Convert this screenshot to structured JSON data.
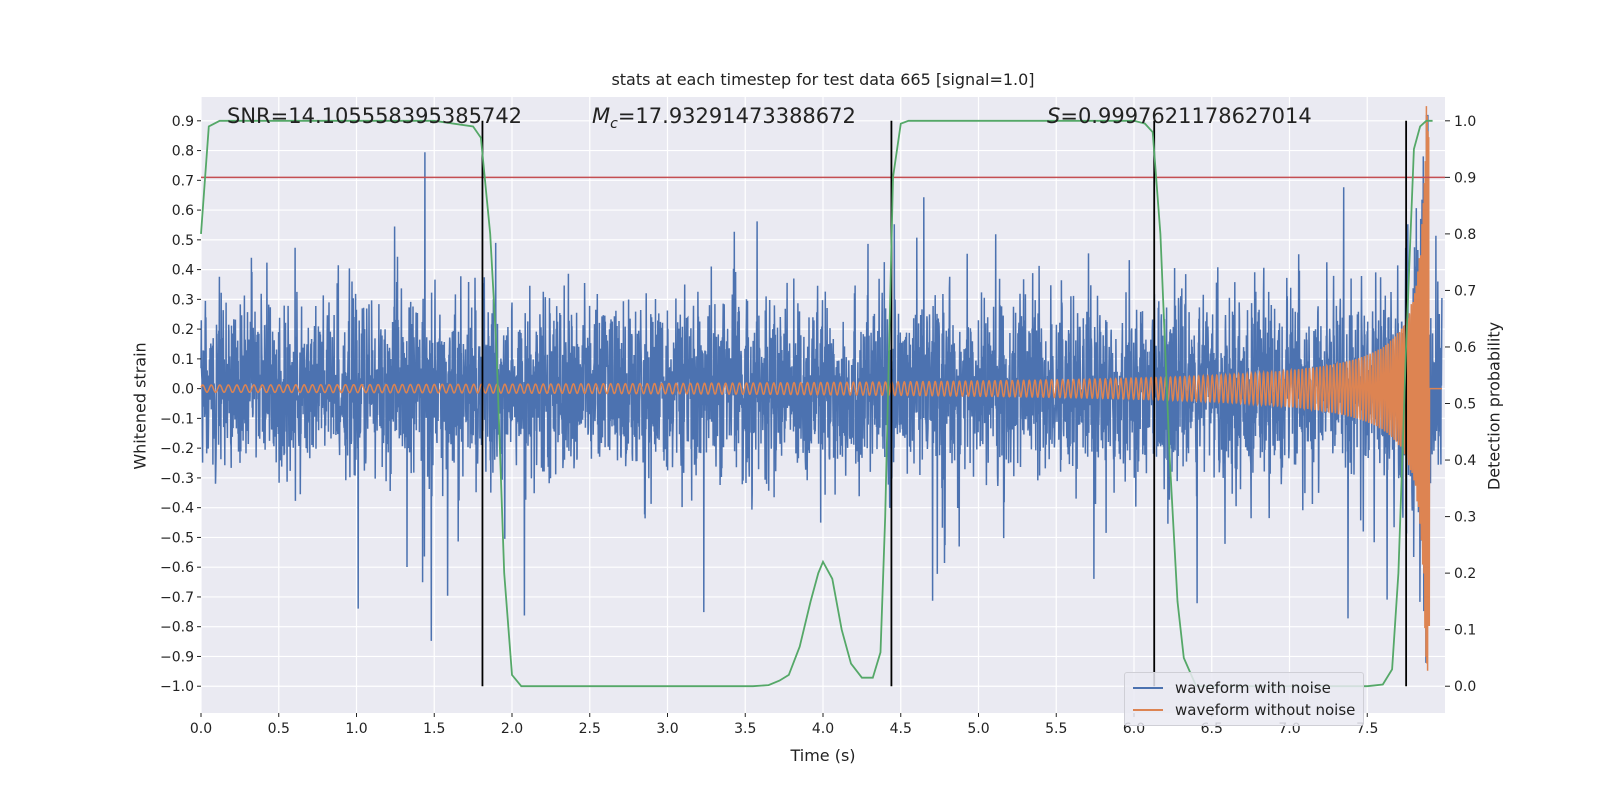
{
  "chart_data": {
    "type": "line",
    "title": "stats at each timestep for test data 665 [signal=1.0]",
    "xlabel": "Time (s)",
    "ylabel_left": "Whitened strain",
    "ylabel_right": "Detection probability",
    "xlim": [
      0.0,
      8.0
    ],
    "ylim_left": [
      -1.09,
      0.98
    ],
    "ylim_right": [
      0.0,
      1.0
    ],
    "x_ticks": [
      "0.0",
      "0.5",
      "1.0",
      "1.5",
      "2.0",
      "2.5",
      "3.0",
      "3.5",
      "4.0",
      "4.5",
      "5.0",
      "5.5",
      "6.0",
      "6.5",
      "7.0",
      "7.5"
    ],
    "y_ticks_left": [
      "0.9",
      "0.8",
      "0.7",
      "0.6",
      "0.5",
      "0.4",
      "0.3",
      "0.2",
      "0.1",
      "0.0",
      "-0.1",
      "-0.2",
      "-0.3",
      "-0.4",
      "-0.5",
      "-0.6",
      "-0.7",
      "-0.8",
      "-0.9",
      "-1.0"
    ],
    "y_ticks_right": [
      "1.0",
      "0.9",
      "0.8",
      "0.7",
      "0.6",
      "0.5",
      "0.4",
      "0.3",
      "0.2",
      "0.1",
      "0.0"
    ],
    "annotations": {
      "snr": "SNR=14.105558395385742",
      "mc_symbol": "M",
      "mc_sub": "c",
      "mc_value": "=17.93291473388672",
      "s_symbol": "S",
      "s_value": "=0.9997621178627014"
    },
    "threshold": {
      "value": 0.9,
      "axis": "right",
      "color": "#c44e52"
    },
    "vertical_lines": [
      1.81,
      4.44,
      6.13,
      7.75
    ],
    "detection_probability": {
      "name": "detection probability",
      "color": "#55a868",
      "x": [
        0.0,
        0.05,
        0.12,
        0.3,
        1.0,
        1.5,
        1.75,
        1.8,
        1.86,
        1.9,
        1.95,
        2.0,
        2.06,
        2.15,
        3.0,
        3.55,
        3.65,
        3.72,
        3.78,
        3.85,
        3.92,
        3.97,
        4.0,
        4.06,
        4.12,
        4.18,
        4.25,
        4.32,
        4.37,
        4.4,
        4.45,
        4.5,
        4.55,
        5.0,
        5.5,
        6.0,
        6.07,
        6.12,
        6.17,
        6.2,
        6.23,
        6.28,
        6.32,
        6.4,
        7.0,
        7.5,
        7.6,
        7.66,
        7.7,
        7.75,
        7.8,
        7.84,
        7.88,
        7.92
      ],
      "y": [
        0.8,
        0.99,
        1.0,
        1.0,
        1.0,
        1.0,
        0.99,
        0.97,
        0.8,
        0.6,
        0.2,
        0.02,
        0.0,
        0.0,
        0.0,
        0.0,
        0.002,
        0.01,
        0.02,
        0.07,
        0.15,
        0.2,
        0.22,
        0.19,
        0.1,
        0.04,
        0.015,
        0.015,
        0.06,
        0.3,
        0.9,
        0.995,
        1.0,
        1.0,
        1.0,
        1.0,
        0.995,
        0.98,
        0.8,
        0.6,
        0.4,
        0.15,
        0.05,
        0.0,
        0.0,
        0.0,
        0.003,
        0.03,
        0.2,
        0.6,
        0.95,
        0.99,
        1.0,
        1.0
      ]
    },
    "series": [
      {
        "name": "waveform with noise",
        "color": "#4c72b0",
        "noise_std": 0.14,
        "x_range": [
          0.0,
          7.98
        ]
      },
      {
        "name": "waveform without noise",
        "color": "#dd8452",
        "x_range": [
          0.0,
          7.98
        ],
        "merger_time": 7.9,
        "amplitude_start": 0.012,
        "amplitude_peak": 0.95
      }
    ],
    "legend": {
      "location": "lower right",
      "items": [
        "waveform with noise",
        "waveform without noise"
      ]
    }
  }
}
